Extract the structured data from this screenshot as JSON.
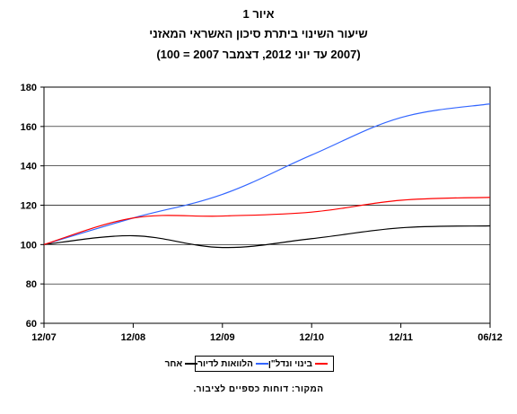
{
  "title": {
    "line1": "איור 1",
    "line2": "שיעור השינוי ביתרת סיכון האשראי המאזני",
    "line3": "(2007 עד יוני 2012, דצמבר 2007 = 100)"
  },
  "source": "המקור: דוחות כספיים לציבור.",
  "chart_data": {
    "type": "line",
    "categories": [
      "12/07",
      "12/08",
      "12/09",
      "12/10",
      "12/11",
      "06/12"
    ],
    "ylim": [
      60,
      180
    ],
    "yticks": [
      60,
      80,
      100,
      120,
      140,
      160,
      180
    ],
    "grid": true,
    "legend_position": "bottom",
    "series": [
      {
        "name": "בינוי ונדל\"ן",
        "color": "#ff0000",
        "values": [
          100,
          113.5,
          114.5,
          116.5,
          122.5,
          124
        ]
      },
      {
        "name": "הלוואות לדיור",
        "color": "#3366ff",
        "values": [
          100,
          113.5,
          125.5,
          145.5,
          164.5,
          171.5
        ]
      },
      {
        "name": "אחר",
        "color": "#000000",
        "values": [
          100,
          104.5,
          98.5,
          103,
          108.5,
          109.5
        ]
      }
    ]
  }
}
